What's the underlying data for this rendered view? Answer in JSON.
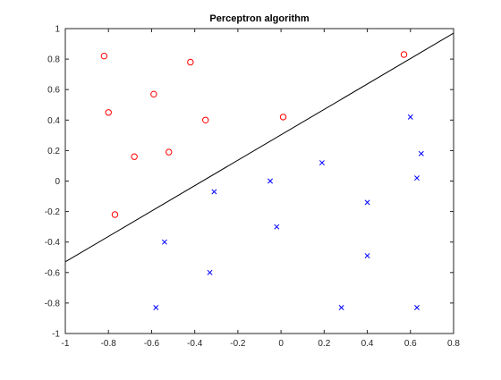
{
  "chart_data": {
    "type": "scatter",
    "title": "Perceptron algorithm",
    "xlabel": "",
    "ylabel": "",
    "xlim": [
      -1,
      0.8
    ],
    "ylim": [
      -1,
      1
    ],
    "xticks": [
      "-1",
      "-0.8",
      "-0.6",
      "-0.4",
      "-0.2",
      "0",
      "0.2",
      "0.4",
      "0.6",
      "0.8"
    ],
    "yticks": [
      "-1",
      "-0.8",
      "-0.6",
      "-0.4",
      "-0.2",
      "0",
      "0.2",
      "0.4",
      "0.6",
      "0.8",
      "1"
    ],
    "grid": false,
    "legend": "none",
    "series": [
      {
        "marker": "circle",
        "color": "#ff0000",
        "points": [
          [
            -0.82,
            0.82
          ],
          [
            -0.8,
            0.45
          ],
          [
            -0.77,
            -0.22
          ],
          [
            -0.68,
            0.16
          ],
          [
            -0.59,
            0.57
          ],
          [
            -0.52,
            0.19
          ],
          [
            -0.42,
            0.78
          ],
          [
            -0.35,
            0.4
          ],
          [
            0.01,
            0.42
          ],
          [
            0.57,
            0.83
          ]
        ]
      },
      {
        "marker": "x",
        "color": "#0000ff",
        "points": [
          [
            -0.58,
            -0.83
          ],
          [
            -0.54,
            -0.4
          ],
          [
            -0.33,
            -0.6
          ],
          [
            -0.31,
            -0.07
          ],
          [
            -0.05,
            0.0
          ],
          [
            -0.02,
            -0.3
          ],
          [
            0.19,
            0.12
          ],
          [
            0.28,
            -0.83
          ],
          [
            0.4,
            -0.14
          ],
          [
            0.4,
            -0.49
          ],
          [
            0.6,
            0.42
          ],
          [
            0.63,
            0.02
          ],
          [
            0.63,
            -0.83
          ],
          [
            0.65,
            0.18
          ]
        ]
      }
    ],
    "decision_boundary": {
      "color": "#000000",
      "from": [
        -1,
        -0.53
      ],
      "to": [
        0.8,
        0.97
      ]
    }
  }
}
